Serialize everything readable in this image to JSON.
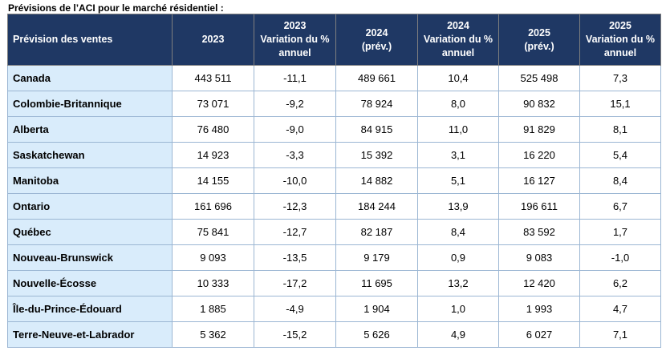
{
  "title": "Prévisions de l’ACI pour le marché résidentiel :",
  "headers": [
    [
      "Prévision des ventes"
    ],
    [
      "2023"
    ],
    [
      "2023",
      "Variation du %",
      "annuel"
    ],
    [
      "2024",
      "(prév.)"
    ],
    [
      "2024",
      "Variation du %",
      "annuel"
    ],
    [
      "2025",
      "(prév.)"
    ],
    [
      "2025",
      "Variation du %",
      "annuel"
    ]
  ],
  "rows": [
    [
      "Canada",
      "443 511",
      "-11,1",
      "489 661",
      "10,4",
      "525 498",
      "7,3"
    ],
    [
      "Colombie-Britannique",
      "73 071",
      "-9,2",
      "78 924",
      "8,0",
      "90 832",
      "15,1"
    ],
    [
      "Alberta",
      "76 480",
      "-9,0",
      "84 915",
      "11,0",
      "91 829",
      "8,1"
    ],
    [
      "Saskatchewan",
      "14 923",
      "-3,3",
      "15 392",
      "3,1",
      "16 220",
      "5,4"
    ],
    [
      "Manitoba",
      "14 155",
      "-10,0",
      "14 882",
      "5,1",
      "16 127",
      "8,4"
    ],
    [
      "Ontario",
      "161 696",
      "-12,3",
      "184 244",
      "13,9",
      "196 611",
      "6,7"
    ],
    [
      "Québec",
      "75 841",
      "-12,7",
      "82 187",
      "8,4",
      "83 592",
      "1,7"
    ],
    [
      "Nouveau-Brunswick",
      "9 093",
      "-13,5",
      "9 179",
      "0,9",
      "9 083",
      "-1,0"
    ],
    [
      "Nouvelle-Écosse",
      "10 333",
      "-17,2",
      "11 695",
      "13,2",
      "12 420",
      "6,2"
    ],
    [
      "Île-du-Prince-Édouard",
      "1 885",
      "-4,9",
      "1 904",
      "1,0",
      "1 993",
      "4,7"
    ],
    [
      "Terre-Neuve-et-Labrador",
      "5 362",
      "-15,2",
      "5 626",
      "4,9",
      "6 027",
      "7,1"
    ]
  ]
}
